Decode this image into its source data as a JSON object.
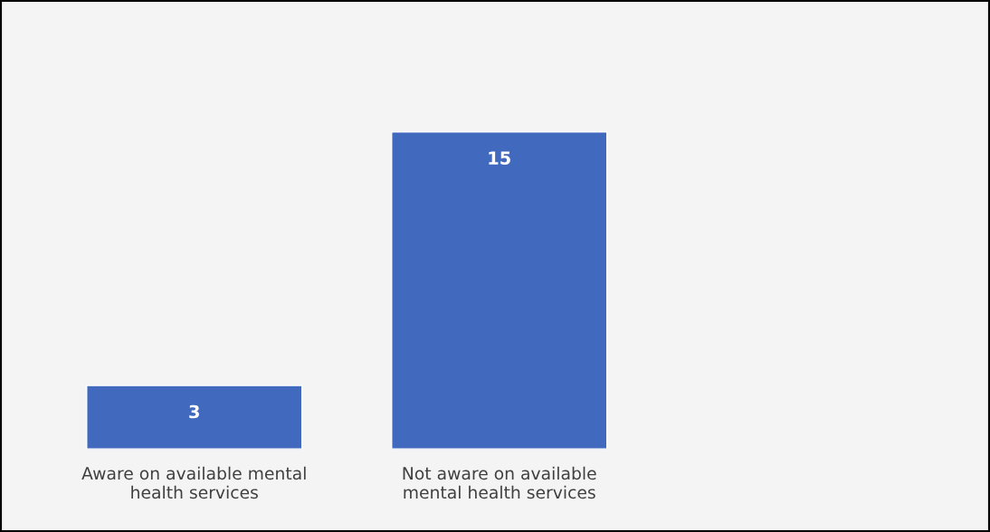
{
  "chart_data": {
    "type": "bar",
    "categories": [
      "Aware on available mental health services",
      "Not aware on available mental health services"
    ],
    "values": [
      3,
      15
    ],
    "color": "#4169be",
    "data_labels": true,
    "grid": false,
    "legend": false
  }
}
